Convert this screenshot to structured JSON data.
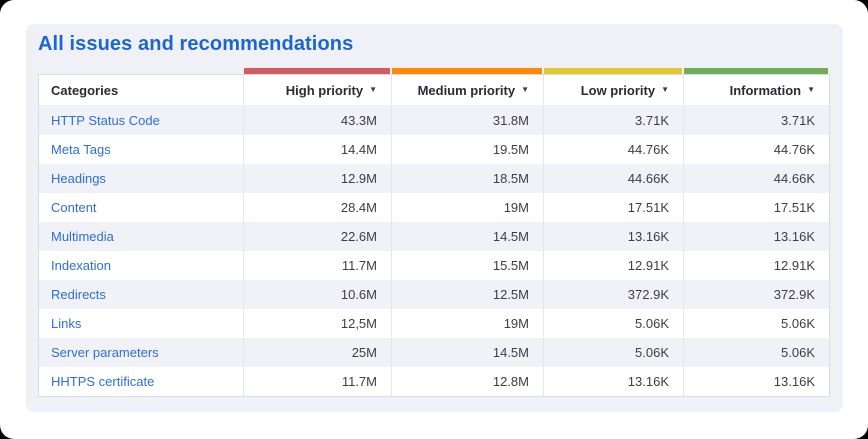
{
  "page": {
    "title": "All issues and recommendations"
  },
  "table": {
    "category_header": "Categories",
    "sort_icon": "▼",
    "priority_columns": [
      {
        "label": "High priority",
        "color": "#d05d62"
      },
      {
        "label": "Medium priority",
        "color": "#ff8a00"
      },
      {
        "label": "Low priority",
        "color": "#e0ca2d"
      },
      {
        "label": "Information",
        "color": "#74ac55"
      }
    ],
    "rows": [
      {
        "category": "HTTP Status Code",
        "values": [
          "43.3M",
          "31.8M",
          "3.71K",
          "3.71K"
        ]
      },
      {
        "category": "Meta Tags",
        "values": [
          "14.4M",
          "19.5M",
          "44.76K",
          "44.76K"
        ]
      },
      {
        "category": "Headings",
        "values": [
          "12.9M",
          "18.5M",
          "44.66K",
          "44.66K"
        ]
      },
      {
        "category": "Content",
        "values": [
          "28.4M",
          "19M",
          "17.51K",
          "17.51K"
        ]
      },
      {
        "category": "Multimedia",
        "values": [
          "22.6M",
          "14.5M",
          "13.16K",
          "13.16K"
        ]
      },
      {
        "category": "Indexation",
        "values": [
          "11.7M",
          "15.5M",
          "12.91K",
          "12.91K"
        ]
      },
      {
        "category": "Redirects",
        "values": [
          "10.6M",
          "12.5M",
          "372.9K",
          "372.9K"
        ]
      },
      {
        "category": "Links",
        "values": [
          "12,5M",
          "19M",
          "5.06K",
          "5.06K"
        ]
      },
      {
        "category": "Server parameters",
        "values": [
          "25M",
          "14.5M",
          "5.06K",
          "5.06K"
        ]
      },
      {
        "category": "HHTPS certificate",
        "values": [
          "11.7M",
          "12.8M",
          "13.16K",
          "13.16K"
        ]
      }
    ]
  }
}
